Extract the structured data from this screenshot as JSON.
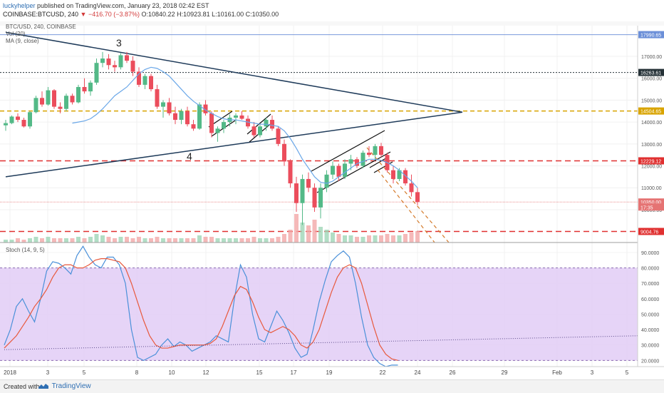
{
  "header": {
    "author": "luckyhelper",
    "published": "published on TradingView.com, January 23, 2018 02:42 EST",
    "symbol": "COINBASE:BTCUSD, 240",
    "change": "▼ −416.70 (−3.87%)",
    "ohlc": "O:10840.22 H:10923.81 L:10161.00 C:10350.00"
  },
  "indicators": {
    "title": "BTC/USD, 240, COINBASE",
    "vol": "Vol (20)",
    "ma": "MA (9, close)",
    "stoch": "Stoch (14, 9, 5)"
  },
  "footer": {
    "created": "Created with",
    "brand": "TradingView"
  },
  "chart_data": [
    {
      "type": "candlestick",
      "title": "BTC/USD, 240, COINBASE",
      "ylim": [
        8500,
        18400
      ],
      "x_ticks": [
        "2018",
        "3",
        "5",
        "8",
        "10",
        "12",
        "15",
        "17",
        "19",
        "22",
        "24",
        "26",
        "29",
        "Feb",
        "3",
        "5"
      ],
      "price_ticks": [
        10000,
        11000,
        12000,
        13000,
        14000,
        15000,
        16000,
        17000
      ],
      "price_labels": [
        {
          "text": "17990.65",
          "value": 17990.65,
          "color": "#6b8fd8"
        },
        {
          "text": "16263.61",
          "value": 16263.61,
          "color": "#263238"
        },
        {
          "text": "14504.65",
          "value": 14504.65,
          "color": "#d9a400"
        },
        {
          "text": "12229.12",
          "value": 12229.12,
          "color": "#e03030"
        },
        {
          "text": "10350.00",
          "value": 10350.0,
          "color": "#e57373"
        },
        {
          "text": "17:35",
          "value": 10120,
          "color": "#e57373"
        },
        {
          "text": "9004.76",
          "value": 9004.76,
          "color": "#e03030"
        }
      ],
      "annotations": [
        "3",
        "4"
      ],
      "candles": [
        [
          13850,
          14100,
          13600,
          13950
        ],
        [
          13950,
          14300,
          13900,
          14250
        ],
        [
          14250,
          14400,
          14000,
          14100
        ],
        [
          14100,
          14200,
          13750,
          13800
        ],
        [
          13800,
          14500,
          13700,
          14450
        ],
        [
          14450,
          15200,
          14400,
          15100
        ],
        [
          15100,
          15400,
          14700,
          14800
        ],
        [
          14800,
          15600,
          14750,
          15450
        ],
        [
          15450,
          15500,
          14600,
          14700
        ],
        [
          14700,
          14900,
          14400,
          14600
        ],
        [
          14600,
          15300,
          14500,
          15200
        ],
        [
          15200,
          15300,
          14800,
          14900
        ],
        [
          14900,
          15700,
          14850,
          15600
        ],
        [
          15600,
          16000,
          15300,
          15400
        ],
        [
          15400,
          15900,
          15200,
          15800
        ],
        [
          15800,
          16900,
          15700,
          16700
        ],
        [
          16700,
          17200,
          16500,
          16900
        ],
        [
          16900,
          17100,
          16400,
          16600
        ],
        [
          16600,
          16800,
          16300,
          16500
        ],
        [
          16500,
          17150,
          16400,
          17050
        ],
        [
          17050,
          17200,
          16700,
          16800
        ],
        [
          16800,
          17000,
          16100,
          16300
        ],
        [
          16300,
          16500,
          15600,
          15700
        ],
        [
          15700,
          16200,
          15500,
          16100
        ],
        [
          16100,
          16200,
          15400,
          15500
        ],
        [
          15500,
          15700,
          14600,
          14700
        ],
        [
          14700,
          15000,
          14200,
          14900
        ],
        [
          14900,
          15100,
          14300,
          14400
        ],
        [
          14400,
          14700,
          13900,
          14100
        ],
        [
          14100,
          14600,
          13900,
          14500
        ],
        [
          14500,
          14700,
          13800,
          13900
        ],
        [
          13900,
          14100,
          13600,
          13700
        ],
        [
          13700,
          14900,
          13650,
          14800
        ],
        [
          14800,
          15000,
          14300,
          14400
        ],
        [
          14400,
          14500,
          13300,
          13500
        ],
        [
          13500,
          13800,
          13100,
          13700
        ],
        [
          13700,
          14100,
          13500,
          14000
        ],
        [
          14000,
          14350,
          13800,
          14200
        ],
        [
          14200,
          14400,
          13900,
          14300
        ],
        [
          14300,
          14500,
          14100,
          14150
        ],
        [
          14150,
          14300,
          13700,
          13800
        ],
        [
          13800,
          14000,
          13300,
          13400
        ],
        [
          13400,
          13900,
          13300,
          13800
        ],
        [
          13800,
          14200,
          13600,
          14100
        ],
        [
          14100,
          14300,
          13600,
          13700
        ],
        [
          13700,
          13800,
          12900,
          13000
        ],
        [
          13000,
          13200,
          12000,
          12200
        ],
        [
          12200,
          12300,
          11000,
          11200
        ],
        [
          11200,
          11500,
          9900,
          10300
        ],
        [
          10300,
          11600,
          9300,
          11400
        ],
        [
          11400,
          11700,
          10800,
          11000
        ],
        [
          11000,
          11200,
          9900,
          10100
        ],
        [
          10100,
          11200,
          9600,
          11000
        ],
        [
          11000,
          11800,
          10800,
          11600
        ],
        [
          11600,
          12200,
          11400,
          12000
        ],
        [
          12000,
          12100,
          11300,
          11500
        ],
        [
          11500,
          12300,
          11400,
          12100
        ],
        [
          12100,
          12500,
          11800,
          12300
        ],
        [
          12300,
          12400,
          11900,
          12000
        ],
        [
          12000,
          12700,
          11900,
          12600
        ],
        [
          12600,
          12900,
          12400,
          12500
        ],
        [
          12500,
          13000,
          12300,
          12900
        ],
        [
          12900,
          13050,
          12400,
          12500
        ],
        [
          12500,
          12600,
          11700,
          11800
        ],
        [
          11800,
          12000,
          11200,
          11400
        ],
        [
          11400,
          11900,
          11300,
          11800
        ],
        [
          11800,
          11900,
          11100,
          11200
        ],
        [
          11200,
          11600,
          10600,
          10800
        ],
        [
          10800,
          11000,
          10200,
          10350
        ]
      ],
      "ma": [
        13950,
        14000,
        14050,
        14150,
        14350,
        14600,
        14900,
        15200,
        15400,
        15600,
        15900,
        16200,
        16400,
        16500,
        16450,
        16300,
        16100,
        15800,
        15500,
        15200,
        14950,
        14750,
        14550,
        14400,
        14250,
        14150,
        14100,
        14100,
        14050,
        14000,
        13950,
        13900,
        13900,
        13850,
        13800,
        13600,
        13250,
        12800,
        12300,
        11900,
        11500,
        11250,
        11200,
        11300,
        11500,
        11700,
        11900,
        12100,
        12200,
        12300,
        12300,
        12250,
        12150,
        12000,
        11800,
        11550,
        11300,
        11000
      ],
      "volume": [
        2,
        2,
        3,
        2,
        3,
        4,
        3,
        4,
        3,
        3,
        3,
        3,
        4,
        3,
        4,
        6,
        5,
        4,
        3,
        4,
        4,
        3,
        4,
        3,
        3,
        4,
        3,
        3,
        3,
        3,
        3,
        3,
        5,
        4,
        4,
        3,
        3,
        3,
        3,
        3,
        3,
        4,
        3,
        3,
        3,
        4,
        6,
        9,
        20,
        14,
        12,
        16,
        11,
        9,
        7,
        6,
        5,
        5,
        4,
        4,
        5,
        5,
        5,
        6,
        5,
        5,
        6,
        7,
        8
      ],
      "trendlines": [
        {
          "from": [
            0,
            18100
          ],
          "to": [
            66,
            14450
          ],
          "color": "#1f3b5a"
        },
        {
          "from": [
            0,
            11500
          ],
          "to": [
            66,
            14450
          ],
          "color": "#1f3b5a"
        }
      ]
    },
    {
      "type": "line",
      "title": "Stoch (14, 9, 5)",
      "ylim": [
        16,
        96
      ],
      "y_ticks": [
        20,
        30,
        40,
        50,
        60,
        70,
        80,
        90
      ],
      "bands": [
        20,
        80
      ],
      "series": [
        {
          "color": "#4a90d9",
          "values": [
            30,
            40,
            55,
            60,
            52,
            45,
            60,
            78,
            84,
            83,
            80,
            76,
            88,
            94,
            87,
            82,
            80,
            87,
            87,
            82,
            70,
            40,
            22,
            20,
            22,
            24,
            30,
            34,
            29,
            32,
            30,
            26,
            28,
            30,
            32,
            36,
            34,
            32,
            60,
            82,
            74,
            50,
            34,
            32,
            42,
            52,
            46,
            38,
            28,
            22,
            24,
            40,
            58,
            72,
            84,
            88,
            91,
            87,
            70,
            48,
            30,
            22,
            18,
            16,
            17,
            17
          ]
        },
        {
          "color": "#e8593c",
          "values": [
            28,
            32,
            36,
            42,
            48,
            55,
            60,
            66,
            74,
            80,
            82,
            82,
            80,
            80,
            82,
            85,
            86,
            86,
            85,
            84,
            80,
            70,
            58,
            46,
            36,
            30,
            28,
            28,
            29,
            30,
            30,
            30,
            30,
            30,
            31,
            34,
            42,
            52,
            62,
            68,
            66,
            58,
            48,
            40,
            38,
            40,
            42,
            40,
            36,
            30,
            28,
            32,
            40,
            52,
            64,
            74,
            80,
            82,
            80,
            70,
            56,
            42,
            30,
            24,
            21,
            20
          ]
        }
      ],
      "trendline": {
        "from": [
          0,
          27
        ],
        "to": [
          66,
          36
        ]
      }
    }
  ]
}
